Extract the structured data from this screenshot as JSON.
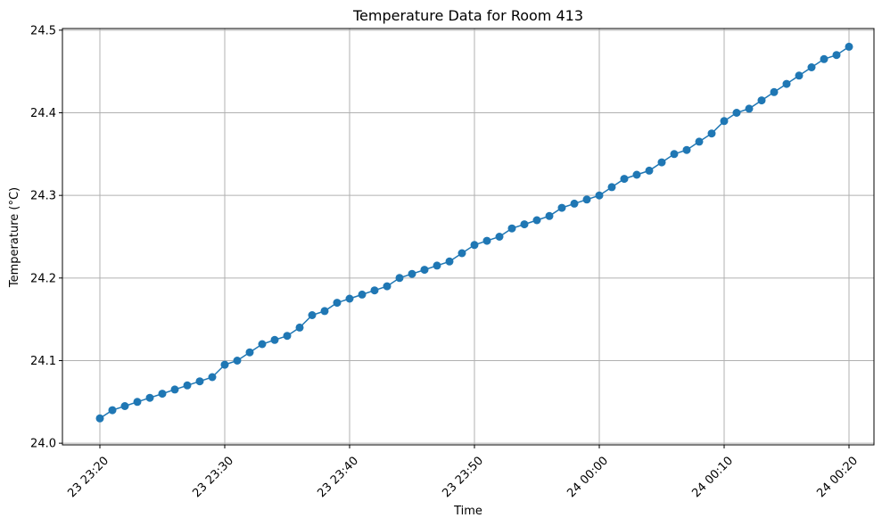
{
  "chart_data": {
    "type": "line",
    "title": "Temperature Data for Room 413",
    "xlabel": "Time",
    "ylabel": "Temperature (°C)",
    "x_ticks": [
      "23 23:20",
      "23 23:30",
      "23 23:40",
      "23 23:50",
      "24 00:00",
      "24 00:10",
      "24 00:20"
    ],
    "y_ticks": [
      "24.0",
      "24.1",
      "24.2",
      "24.3",
      "24.4",
      "24.5"
    ],
    "xlim": [
      "23 23:17",
      "24 00:22"
    ],
    "ylim": [
      23.998,
      24.502
    ],
    "grid": true,
    "marker": "circle",
    "series": [
      {
        "color": "#1f77b4",
        "x": [
          "23 23:20",
          "23 23:21",
          "23 23:22",
          "23 23:23",
          "23 23:24",
          "23 23:25",
          "23 23:26",
          "23 23:27",
          "23 23:28",
          "23 23:29",
          "23 23:30",
          "23 23:31",
          "23 23:32",
          "23 23:33",
          "23 23:34",
          "23 23:35",
          "23 23:36",
          "23 23:37",
          "23 23:38",
          "23 23:39",
          "23 23:40",
          "23 23:41",
          "23 23:42",
          "23 23:43",
          "23 23:44",
          "23 23:45",
          "23 23:46",
          "23 23:47",
          "23 23:48",
          "23 23:49",
          "23 23:50",
          "23 23:51",
          "23 23:52",
          "23 23:53",
          "23 23:54",
          "23 23:55",
          "23 23:56",
          "23 23:57",
          "23 23:58",
          "23 23:59",
          "24 00:00",
          "24 00:01",
          "24 00:02",
          "24 00:03",
          "24 00:04",
          "24 00:05",
          "24 00:06",
          "24 00:07",
          "24 00:08",
          "24 00:09",
          "24 00:10",
          "24 00:11",
          "24 00:12",
          "24 00:13",
          "24 00:14",
          "24 00:15",
          "24 00:16",
          "24 00:17",
          "24 00:18",
          "24 00:19",
          "24 00:20"
        ],
        "values": [
          24.03,
          24.04,
          24.045,
          24.05,
          24.055,
          24.06,
          24.065,
          24.07,
          24.075,
          24.08,
          24.095,
          24.1,
          24.11,
          24.12,
          24.125,
          24.13,
          24.14,
          24.155,
          24.16,
          24.17,
          24.175,
          24.18,
          24.185,
          24.19,
          24.2,
          24.205,
          24.21,
          24.215,
          24.22,
          24.23,
          24.24,
          24.245,
          24.25,
          24.26,
          24.265,
          24.27,
          24.275,
          24.285,
          24.29,
          24.295,
          24.3,
          24.31,
          24.32,
          24.325,
          24.33,
          24.34,
          24.35,
          24.355,
          24.365,
          24.375,
          24.39,
          24.4,
          24.405,
          24.415,
          24.425,
          24.435,
          24.445,
          24.455,
          24.465,
          24.47,
          24.48
        ]
      }
    ]
  }
}
